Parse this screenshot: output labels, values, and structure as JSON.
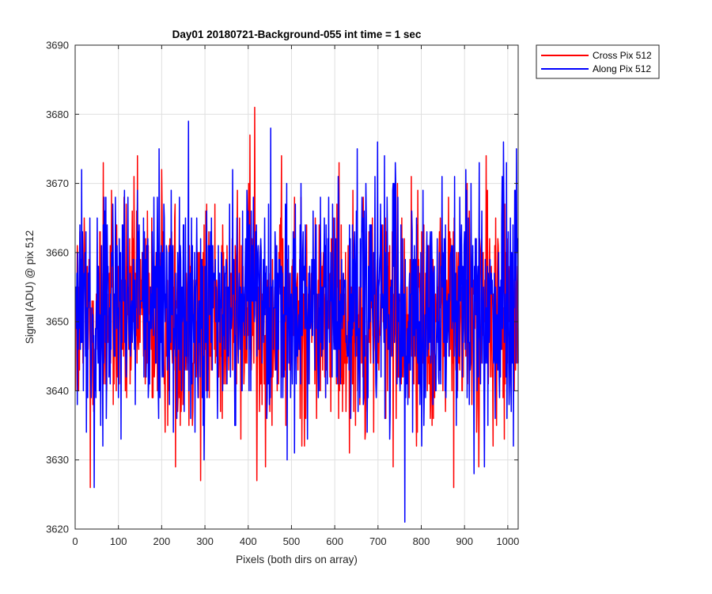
{
  "chart_data": {
    "type": "line",
    "title": "Day01 20180721-Background-055 int time = 1 sec",
    "xlabel": "Pixels (both dirs on array)",
    "ylabel": "Signal (ADU) @ pix 512",
    "xlim": [
      0,
      1024
    ],
    "ylim": [
      3620,
      3690
    ],
    "xticks": [
      0,
      100,
      200,
      300,
      400,
      500,
      600,
      700,
      800,
      900,
      1000
    ],
    "yticks": [
      3620,
      3630,
      3640,
      3650,
      3660,
      3670,
      3680,
      3690
    ],
    "grid": true,
    "legend_position": "outside-top-right",
    "series": [
      {
        "name": "Cross Pix 512",
        "color": "#ff0000",
        "x_start": 1,
        "x_end": 1024,
        "approx_mean": 3651,
        "approx_range": [
          3626,
          3681
        ],
        "notable_points": [
          {
            "x": 35,
            "y": 3626
          },
          {
            "x": 65,
            "y": 3673
          },
          {
            "x": 200,
            "y": 3672
          },
          {
            "x": 290,
            "y": 3627
          },
          {
            "x": 415,
            "y": 3681
          },
          {
            "x": 420,
            "y": 3627
          },
          {
            "x": 610,
            "y": 3673
          },
          {
            "x": 875,
            "y": 3626
          },
          {
            "x": 1015,
            "y": 3640
          }
        ]
      },
      {
        "name": "Along Pix 512",
        "color": "#0000ff",
        "x_start": 1,
        "x_end": 1024,
        "approx_mean": 3652,
        "approx_range": [
          3621,
          3679
        ],
        "notable_points": [
          {
            "x": 262,
            "y": 3679
          },
          {
            "x": 452,
            "y": 3678
          },
          {
            "x": 762,
            "y": 3621
          },
          {
            "x": 1020,
            "y": 3675
          }
        ]
      }
    ]
  }
}
